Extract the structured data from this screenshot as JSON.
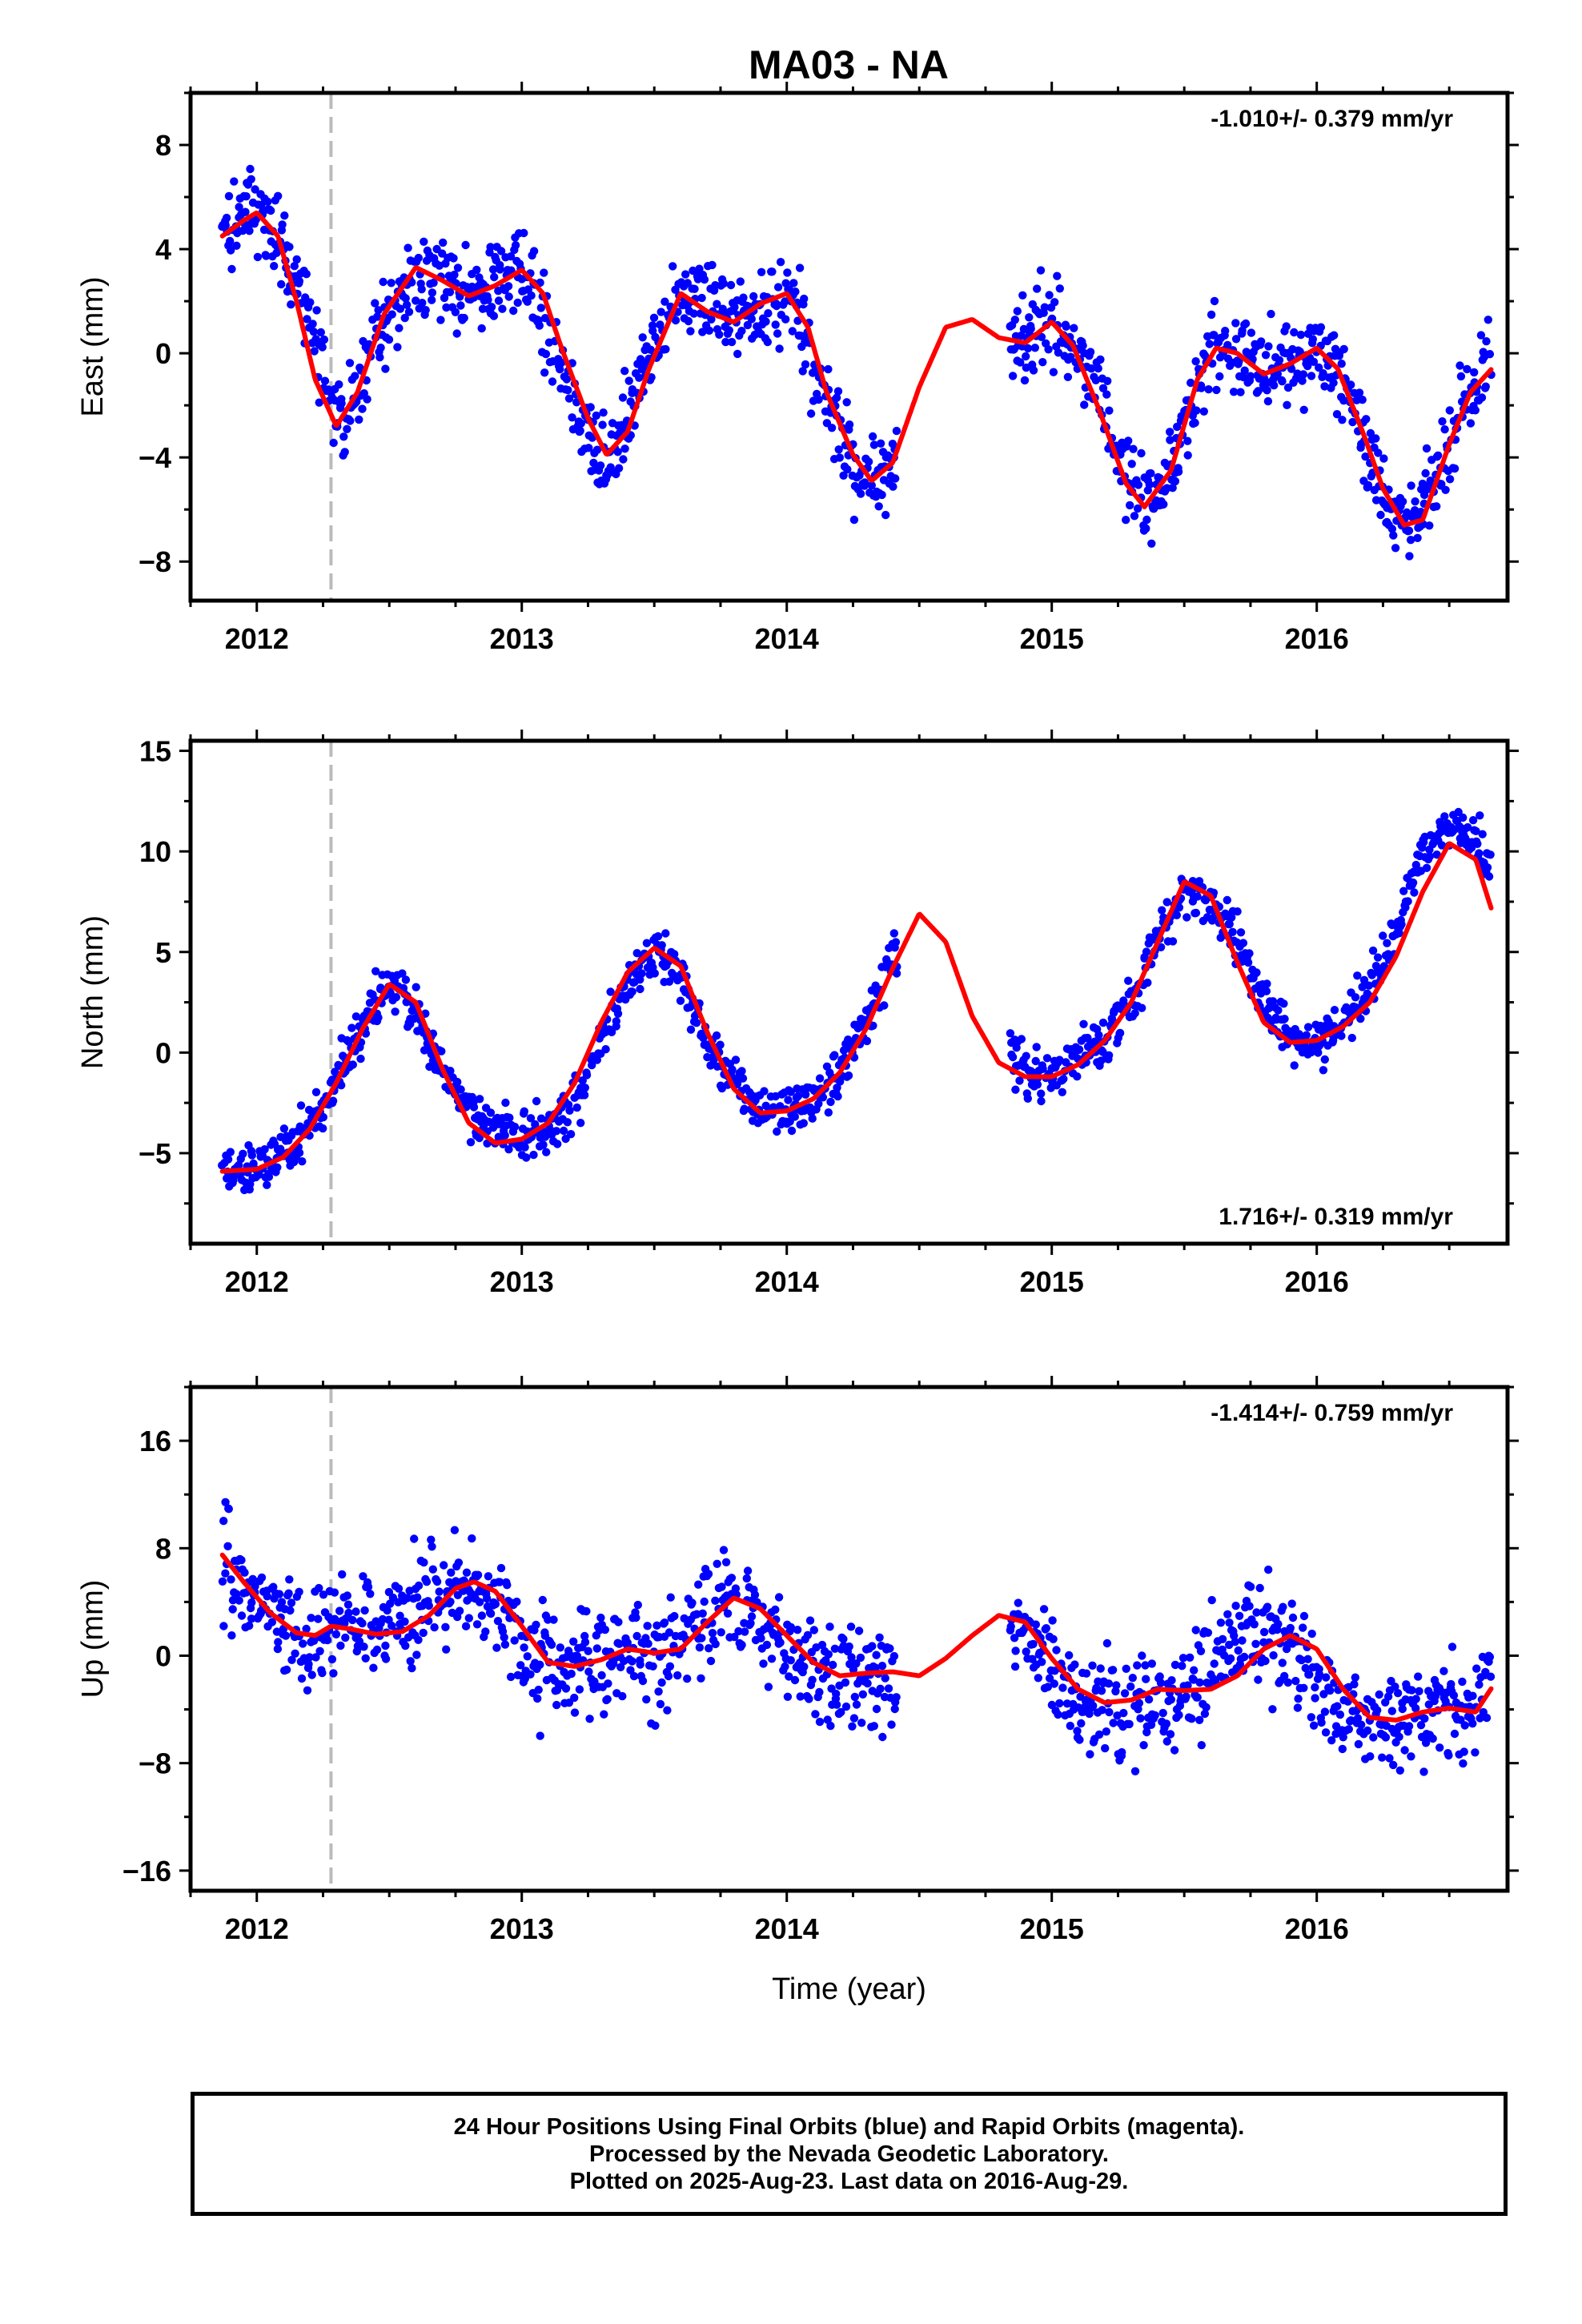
{
  "title": "MA03 - NA",
  "colors": {
    "series": "#0000ff",
    "model": "#ff0000",
    "event_line": "#bbbbbb"
  },
  "chart_data": [
    {
      "type": "scatter",
      "ylabel": "East (mm)",
      "xlabel": "",
      "rate_label": "-1.010+/- 0.379 mm/yr",
      "rate_position": "top-right",
      "xlim": [
        2011.75,
        2016.72
      ],
      "ylim": [
        -9.5,
        10
      ],
      "xticks": [
        2012,
        2013,
        2014,
        2015,
        2016
      ],
      "yticks": [
        -8,
        -4,
        0,
        4,
        8
      ],
      "event_line_x": 2012.28,
      "series": [
        {
          "name": "Final Orbits",
          "role": "points",
          "gaps": [
            [
              2014.42,
              2014.84
            ]
          ],
          "x": [
            2011.87,
            2011.95,
            2012.05,
            2012.12,
            2012.2,
            2012.28,
            2012.33,
            2012.4,
            2012.5,
            2012.6,
            2012.65,
            2012.72,
            2012.8,
            2012.9,
            2013.0,
            2013.05,
            2013.1,
            2013.2,
            2013.3,
            2013.35,
            2013.42,
            2013.5,
            2013.6,
            2013.7,
            2013.8,
            2013.9,
            2014.0,
            2014.05,
            2014.1,
            2014.2,
            2014.3,
            2014.35,
            2014.42,
            2014.84,
            2014.9,
            2015.0,
            2015.1,
            2015.2,
            2015.28,
            2015.35,
            2015.45,
            2015.55,
            2015.6,
            2015.7,
            2015.8,
            2015.9,
            2016.0,
            2016.1,
            2016.2,
            2016.3,
            2016.35,
            2016.45,
            2016.55,
            2016.66
          ],
          "y": [
            4.6,
            5.3,
            5.2,
            3.5,
            1.2,
            -1.5,
            -2.5,
            -0.8,
            2.0,
            3.2,
            3.2,
            2.6,
            2.3,
            2.8,
            3.2,
            2.3,
            0.6,
            -2.0,
            -3.8,
            -3.5,
            -2.0,
            0.6,
            2.3,
            1.8,
            1.2,
            1.5,
            2.2,
            1.6,
            -0.5,
            -3.0,
            -4.8,
            -4.7,
            -4.0,
            0.3,
            0.5,
            1.2,
            0.2,
            -2.0,
            -4.5,
            -5.8,
            -4.5,
            -1.5,
            0.0,
            0.2,
            -0.4,
            -0.5,
            0.2,
            -1.5,
            -4.0,
            -6.3,
            -6.5,
            -4.5,
            -2.0,
            -0.7
          ],
          "jitter": 1.3
        },
        {
          "name": "Model",
          "role": "line",
          "x": [
            2011.87,
            2011.95,
            2012.0,
            2012.08,
            2012.15,
            2012.22,
            2012.3,
            2012.38,
            2012.48,
            2012.6,
            2012.7,
            2012.8,
            2012.9,
            2013.0,
            2013.08,
            2013.15,
            2013.25,
            2013.32,
            2013.4,
            2013.48,
            2013.6,
            2013.7,
            2013.8,
            2013.9,
            2014.0,
            2014.08,
            2014.15,
            2014.25,
            2014.32,
            2014.4,
            2014.5,
            2014.6,
            2014.7,
            2014.8,
            2014.9,
            2015.0,
            2015.08,
            2015.18,
            2015.28,
            2015.35,
            2015.45,
            2015.55,
            2015.62,
            2015.7,
            2015.8,
            2015.9,
            2016.0,
            2016.08,
            2016.18,
            2016.25,
            2016.33,
            2016.4,
            2016.5,
            2016.58,
            2016.66
          ],
          "y": [
            4.5,
            5.1,
            5.4,
            4.5,
            2.0,
            -1.0,
            -2.8,
            -1.5,
            1.5,
            3.3,
            2.8,
            2.2,
            2.6,
            3.2,
            2.3,
            0.2,
            -2.5,
            -3.9,
            -3.0,
            -0.6,
            2.3,
            1.6,
            1.2,
            1.9,
            2.3,
            1.0,
            -1.5,
            -3.9,
            -4.9,
            -4.2,
            -1.3,
            1.0,
            1.3,
            0.6,
            0.4,
            1.2,
            0.3,
            -2.2,
            -5.0,
            -5.9,
            -4.5,
            -1.0,
            0.2,
            0.0,
            -0.8,
            -0.4,
            0.2,
            -0.6,
            -3.2,
            -5.2,
            -6.6,
            -6.4,
            -3.5,
            -1.5,
            -0.6
          ]
        }
      ]
    },
    {
      "type": "scatter",
      "ylabel": "North (mm)",
      "xlabel": "",
      "rate_label": "1.716+/- 0.319 mm/yr",
      "rate_position": "bottom-right",
      "xlim": [
        2011.75,
        2016.72
      ],
      "ylim": [
        -9.5,
        15.5
      ],
      "xticks": [
        2012,
        2013,
        2014,
        2015,
        2016
      ],
      "yticks": [
        -5,
        0,
        5,
        10,
        15
      ],
      "event_line_x": 2012.28,
      "series": [
        {
          "name": "Final Orbits",
          "role": "points",
          "gaps": [
            [
              2014.42,
              2014.84
            ]
          ],
          "x": [
            2011.87,
            2011.95,
            2012.05,
            2012.15,
            2012.25,
            2012.35,
            2012.45,
            2012.52,
            2012.6,
            2012.7,
            2012.8,
            2012.9,
            2013.0,
            2013.1,
            2013.2,
            2013.3,
            2013.4,
            2013.5,
            2013.6,
            2013.7,
            2013.8,
            2013.9,
            2014.0,
            2014.1,
            2014.2,
            2014.3,
            2014.4,
            2014.84,
            2014.9,
            2015.0,
            2015.1,
            2015.2,
            2015.3,
            2015.4,
            2015.5,
            2015.6,
            2015.7,
            2015.8,
            2015.9,
            2016.0,
            2016.1,
            2016.2,
            2016.3,
            2016.4,
            2016.5,
            2016.6,
            2016.66
          ],
          "y": [
            -6.0,
            -6.0,
            -5.5,
            -4.5,
            -2.5,
            0.0,
            2.5,
            3.3,
            2.0,
            -1.0,
            -2.8,
            -3.8,
            -4.2,
            -4.0,
            -2.5,
            0.5,
            3.5,
            5.2,
            4.0,
            0.5,
            -1.5,
            -2.8,
            -2.8,
            -2.3,
            -1.0,
            1.5,
            5.0,
            0.0,
            -0.8,
            -1.0,
            -0.5,
            0.5,
            2.5,
            5.5,
            8.0,
            7.5,
            5.5,
            2.5,
            0.5,
            0.5,
            1.5,
            3.0,
            6.0,
            9.5,
            11.5,
            10.5,
            9.0
          ],
          "jitter": 1.0
        },
        {
          "name": "Model",
          "role": "line",
          "x": [
            2011.87,
            2012.0,
            2012.1,
            2012.2,
            2012.3,
            2012.4,
            2012.5,
            2012.6,
            2012.7,
            2012.8,
            2012.9,
            2013.0,
            2013.1,
            2013.2,
            2013.3,
            2013.4,
            2013.5,
            2013.6,
            2013.7,
            2013.8,
            2013.9,
            2014.0,
            2014.1,
            2014.2,
            2014.3,
            2014.4,
            2014.5,
            2014.6,
            2014.7,
            2014.8,
            2014.9,
            2015.0,
            2015.1,
            2015.2,
            2015.3,
            2015.4,
            2015.5,
            2015.6,
            2015.7,
            2015.8,
            2015.9,
            2016.0,
            2016.1,
            2016.2,
            2016.3,
            2016.4,
            2016.5,
            2016.6,
            2016.66
          ],
          "y": [
            -5.9,
            -5.8,
            -5.2,
            -3.8,
            -1.5,
            1.2,
            3.4,
            2.5,
            -0.8,
            -3.5,
            -4.5,
            -4.3,
            -3.5,
            -1.5,
            1.5,
            4.0,
            5.2,
            4.3,
            1.0,
            -1.8,
            -3.0,
            -2.9,
            -2.3,
            -1.0,
            1.2,
            4.2,
            6.9,
            5.5,
            1.8,
            -0.5,
            -1.2,
            -1.2,
            -0.6,
            0.6,
            2.5,
            5.5,
            8.5,
            7.8,
            4.5,
            1.5,
            0.5,
            0.6,
            1.3,
            2.5,
            4.8,
            8.0,
            10.4,
            9.6,
            7.1
          ]
        }
      ]
    },
    {
      "type": "scatter",
      "ylabel": "Up (mm)",
      "xlabel": "Time (year)",
      "rate_label": "-1.414+/- 0.759 mm/yr",
      "rate_position": "top-right",
      "xlim": [
        2011.75,
        2016.72
      ],
      "ylim": [
        -17.5,
        20
      ],
      "xticks": [
        2012,
        2013,
        2014,
        2015,
        2016
      ],
      "yticks": [
        -16,
        -8,
        0,
        8,
        16
      ],
      "event_line_x": 2012.28,
      "series": [
        {
          "name": "Final Orbits",
          "role": "points",
          "gaps": [
            [
              2014.42,
              2014.84
            ]
          ],
          "x": [
            2011.87,
            2011.95,
            2012.05,
            2012.15,
            2012.25,
            2012.35,
            2012.45,
            2012.55,
            2012.65,
            2012.75,
            2012.85,
            2012.95,
            2013.05,
            2013.15,
            2013.25,
            2013.35,
            2013.45,
            2013.55,
            2013.65,
            2013.75,
            2013.85,
            2013.95,
            2014.05,
            2014.15,
            2014.25,
            2014.35,
            2014.42,
            2014.84,
            2014.95,
            2015.05,
            2015.15,
            2015.25,
            2015.35,
            2015.45,
            2015.55,
            2015.65,
            2015.75,
            2015.85,
            2015.95,
            2016.05,
            2016.15,
            2016.25,
            2016.35,
            2016.45,
            2016.55,
            2016.66
          ],
          "y": [
            7.0,
            5.5,
            3.0,
            1.5,
            1.5,
            2.5,
            2.0,
            2.5,
            4.0,
            5.5,
            4.5,
            2.5,
            0.0,
            -1.0,
            -0.5,
            0.0,
            0.0,
            0.5,
            2.0,
            4.0,
            3.0,
            1.5,
            -0.5,
            -1.5,
            -1.5,
            -1.5,
            -1.5,
            3.0,
            1.0,
            -2.5,
            -4.0,
            -4.0,
            -3.0,
            -3.0,
            -2.5,
            0.0,
            1.5,
            1.5,
            -1.0,
            -4.0,
            -5.0,
            -5.0,
            -4.5,
            -4.0,
            -4.0,
            -2.5
          ],
          "jitter": 3.2
        },
        {
          "name": "Model",
          "role": "line",
          "x": [
            2011.87,
            2011.95,
            2012.05,
            2012.15,
            2012.22,
            2012.28,
            2012.35,
            2012.45,
            2012.55,
            2012.65,
            2012.75,
            2012.82,
            2012.9,
            2013.0,
            2013.1,
            2013.2,
            2013.3,
            2013.4,
            2013.5,
            2013.6,
            2013.7,
            2013.8,
            2013.9,
            2014.0,
            2014.1,
            2014.2,
            2014.3,
            2014.4,
            2014.5,
            2014.6,
            2014.7,
            2014.8,
            2014.9,
            2015.0,
            2015.1,
            2015.2,
            2015.3,
            2015.4,
            2015.5,
            2015.6,
            2015.7,
            2015.8,
            2015.9,
            2016.0,
            2016.1,
            2016.2,
            2016.3,
            2016.4,
            2016.5,
            2016.6,
            2016.66
          ],
          "y": [
            7.5,
            5.5,
            3.2,
            1.7,
            1.5,
            2.2,
            2.0,
            1.6,
            1.8,
            3.0,
            5.0,
            5.5,
            4.8,
            2.2,
            -0.5,
            -0.8,
            -0.3,
            0.5,
            0.2,
            0.5,
            2.5,
            4.3,
            3.5,
            1.5,
            -0.5,
            -1.5,
            -1.3,
            -1.2,
            -1.5,
            -0.2,
            1.5,
            3.0,
            2.5,
            -0.2,
            -2.5,
            -3.5,
            -3.3,
            -2.5,
            -2.6,
            -2.5,
            -1.5,
            0.5,
            1.5,
            0.5,
            -2.5,
            -4.6,
            -4.8,
            -4.2,
            -3.9,
            -4.2,
            -2.4
          ]
        }
      ]
    }
  ],
  "footer": {
    "line1": "24 Hour Positions Using Final Orbits (blue) and Rapid Orbits (magenta).",
    "line2": "Processed by the Nevada Geodetic Laboratory.",
    "line3": "Plotted on 2025-Aug-23. Last data on 2016-Aug-29."
  }
}
